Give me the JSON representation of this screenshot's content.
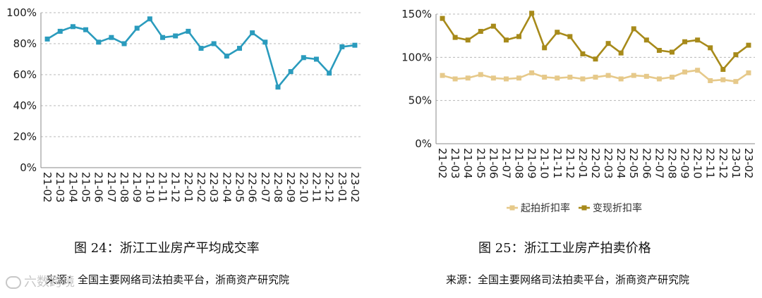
{
  "chart_data": [
    {
      "type": "line",
      "categories": [
        "21-02",
        "21-03",
        "21-04",
        "21-05",
        "21-06",
        "21-07",
        "21-08",
        "21-09",
        "21-10",
        "21-11",
        "21-12",
        "22-01",
        "22-02",
        "22-03",
        "22-04",
        "22-05",
        "22-06",
        "22-07",
        "22-08",
        "22-09",
        "22-10",
        "22-11",
        "22-12",
        "23-01",
        "23-02"
      ],
      "series": [
        {
          "values": [
            83,
            88,
            91,
            89,
            81,
            84,
            80,
            90,
            96,
            84,
            85,
            88,
            77,
            80,
            72,
            77,
            87,
            81,
            52,
            62,
            71,
            70,
            61,
            78,
            79
          ],
          "color": "#2a9bbd"
        }
      ],
      "ylim": [
        0,
        100
      ],
      "yticks": [
        "0%",
        "20%",
        "40%",
        "60%",
        "80%",
        "100%"
      ],
      "grid": true,
      "xlabel": "",
      "ylabel": ""
    },
    {
      "type": "line",
      "categories": [
        "21-02",
        "21-03",
        "21-04",
        "21-05",
        "21-06",
        "21-07",
        "21-08",
        "21-09",
        "21-10",
        "21-11",
        "21-12",
        "22-01",
        "22-02",
        "22-03",
        "22-04",
        "22-05",
        "22-06",
        "22-07",
        "22-08",
        "22-09",
        "22-10",
        "22-11",
        "22-12",
        "23-01",
        "23-02"
      ],
      "series": [
        {
          "name": "起拍折扣率",
          "values": [
            79,
            75,
            76,
            80,
            76,
            75,
            76,
            82,
            77,
            76,
            77,
            75,
            77,
            79,
            75,
            79,
            78,
            75,
            77,
            83,
            85,
            73,
            74,
            72,
            82
          ],
          "color": "#e6c98a"
        },
        {
          "name": "变现折扣率",
          "values": [
            145,
            123,
            120,
            130,
            136,
            120,
            124,
            151,
            111,
            129,
            124,
            104,
            98,
            116,
            105,
            133,
            120,
            108,
            106,
            118,
            120,
            111,
            86,
            103,
            114
          ],
          "color": "#a78a1a"
        }
      ],
      "ylim": [
        0,
        150
      ],
      "yticks": [
        "0%",
        "50%",
        "100%",
        "150%"
      ],
      "grid": true,
      "legend_position": "bottom",
      "xlabel": "",
      "ylabel": ""
    }
  ],
  "captions": {
    "left": "图 24：浙江工业房产平均成交率",
    "right": "图 25：浙江工业房产拍卖价格"
  },
  "sources": {
    "left": "来源：全国主要网络司法拍卖平台，浙商资产研究院",
    "right": "来源：全国主要网络司法拍卖平台，浙商资产研究院"
  },
  "watermark": "六数跨境"
}
